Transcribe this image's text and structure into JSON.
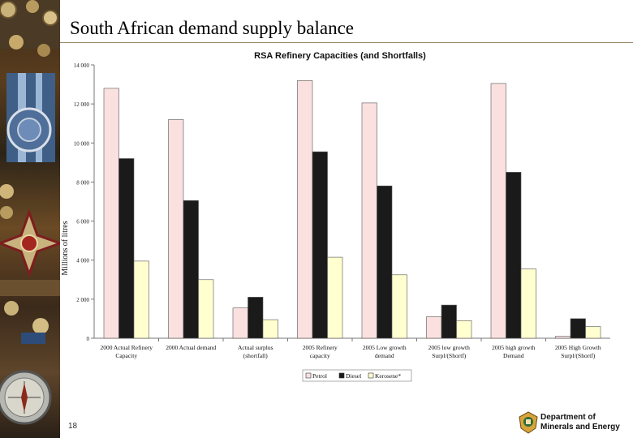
{
  "slide": {
    "title": "South African demand supply balance",
    "page_number": "18",
    "department_line1": "Department of",
    "department_line2": "Minerals and Energy"
  },
  "colors": {
    "petrol": "#fbe0e0",
    "diesel": "#1a1a1a",
    "kerosene": "#ffffd0",
    "bar_edge": "#555555"
  },
  "chart_data": {
    "type": "bar",
    "title": "RSA Refinery Capacities (and Shortfalls)",
    "ylabel": "Millions of litres",
    "xlabel": "",
    "ylim": [
      0,
      14000
    ],
    "yticks": [
      0,
      2000,
      4000,
      6000,
      8000,
      10000,
      12000,
      14000
    ],
    "ytick_labels": [
      "0",
      "2 000",
      "4 000",
      "6 000",
      "8 000",
      "10 000",
      "12 000",
      "14 000"
    ],
    "categories": [
      [
        "2000 Actual Refinery",
        "Capacity"
      ],
      [
        "2000 Actual demand"
      ],
      [
        "Actual surplus",
        "(shortfall)"
      ],
      [
        "2005 Refinery",
        "capacity"
      ],
      [
        "2005 Low growth",
        "demand"
      ],
      [
        "2005 low growth",
        "Surpl/(Shortf)"
      ],
      [
        "2005 high growth",
        "Demand"
      ],
      [
        "2005 High Growth",
        "Surpl/(Shortf)"
      ]
    ],
    "series": [
      {
        "name": "Petrol",
        "values": [
          12800,
          11200,
          1550,
          13200,
          12050,
          1100,
          13050,
          100
        ]
      },
      {
        "name": "Diesel",
        "values": [
          9200,
          7050,
          2100,
          9550,
          7800,
          1700,
          8500,
          1000
        ]
      },
      {
        "name": "Kerosene*",
        "values": [
          3950,
          3000,
          950,
          4150,
          3250,
          900,
          3550,
          600
        ]
      }
    ],
    "legend_position": "bottom-center"
  }
}
